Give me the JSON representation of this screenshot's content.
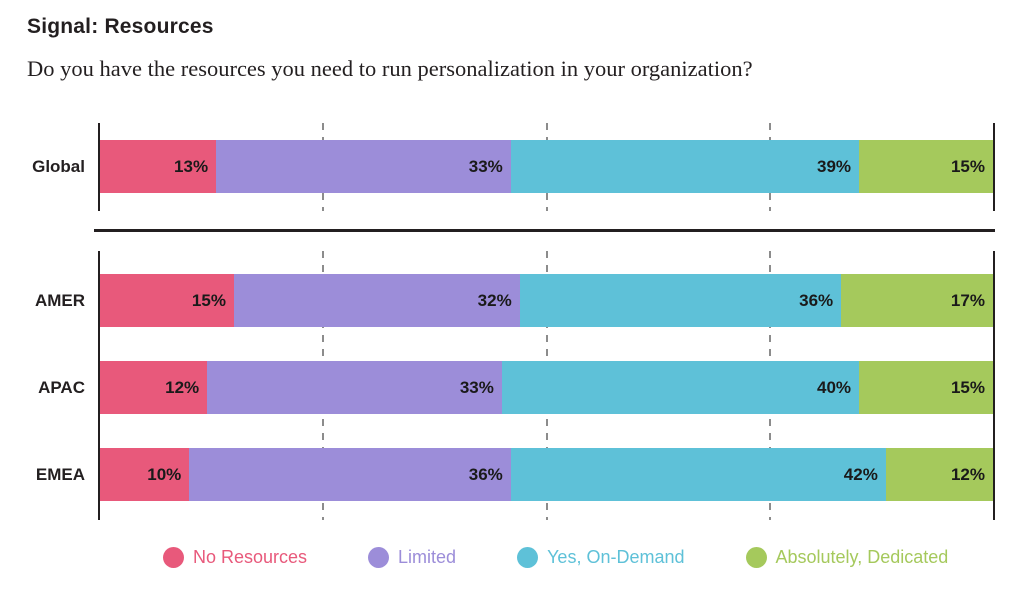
{
  "header": {
    "title": "Signal: Resources",
    "subtitle": "Do you have the resources you need to run personalization in your organization?"
  },
  "chart_data": {
    "type": "bar",
    "orientation": "horizontal",
    "stacked": true,
    "unit": "%",
    "xlim": [
      0,
      100
    ],
    "gridlines_percent": [
      25,
      50,
      75
    ],
    "grid_style": "dashed-vertical",
    "legend_position": "bottom",
    "sections": [
      [
        "Global"
      ],
      [
        "AMER",
        "APAC",
        "EMEA"
      ]
    ],
    "categories": [
      "Global",
      "AMER",
      "APAC",
      "EMEA"
    ],
    "series": [
      {
        "name": "No Resources",
        "color": "#E8597B",
        "values": [
          13,
          15,
          12,
          10
        ]
      },
      {
        "name": "Limited",
        "color": "#9C8DD9",
        "values": [
          33,
          32,
          33,
          36
        ]
      },
      {
        "name": "Yes, On-Demand",
        "color": "#5EC1D8",
        "values": [
          39,
          36,
          40,
          42
        ]
      },
      {
        "name": "Absolutely, Dedicated",
        "color": "#A5C95C",
        "values": [
          15,
          17,
          15,
          12
        ]
      }
    ]
  },
  "colors": {
    "axis": "#231F20",
    "gridline": "#8C8C8C",
    "value_label": "#1A1A1A"
  }
}
